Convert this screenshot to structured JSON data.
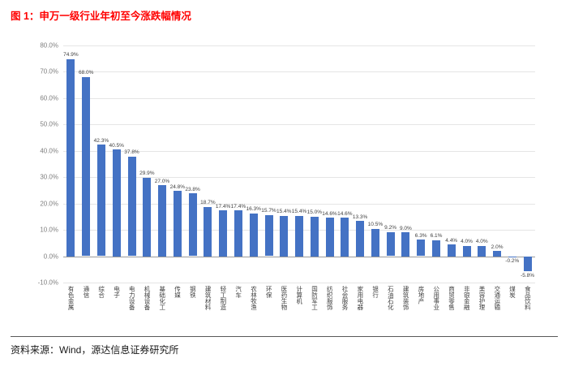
{
  "figure": {
    "title": "图 1：申万一级行业年初至今涨跌幅情况",
    "source": "资料来源：Wind，源达信息证券研究所"
  },
  "colors": {
    "title_red": "#ff0000",
    "bar_blue": "#4472c4",
    "gridline": "#e5e5e5",
    "zero_axis": "#9b9b9b"
  },
  "chart_data": {
    "type": "bar",
    "title": "申万一级行业年初至今涨跌幅情况",
    "categories": [
      "有色金属",
      "通信",
      "综合",
      "电子",
      "电力设备",
      "机械设备",
      "基础化工",
      "传媒",
      "钢铁",
      "建筑材料",
      "轻工制造",
      "汽车",
      "农林牧渔",
      "环保",
      "医药生物",
      "计算机",
      "国防军工",
      "纺织服饰",
      "社会服务",
      "家用电器",
      "银行",
      "石油石化",
      "建筑装饰",
      "房地产",
      "公用事业",
      "商贸零售",
      "非银金融",
      "美容护理",
      "交通运输",
      "煤炭",
      "食品饮料"
    ],
    "values": [
      74.9,
      68.0,
      42.3,
      40.5,
      37.8,
      29.9,
      27.0,
      24.8,
      23.8,
      18.7,
      17.4,
      17.4,
      16.3,
      15.7,
      15.4,
      15.4,
      15.0,
      14.6,
      14.6,
      13.3,
      10.5,
      9.2,
      9.0,
      6.3,
      6.1,
      4.4,
      4.0,
      4.0,
      2.0,
      -0.2,
      -5.8
    ],
    "value_labels": [
      "74.9%",
      "68.0%",
      "42.3%",
      "40.5%",
      "37.8%",
      "29.9%",
      "27.0%",
      "24.8%",
      "23.8%",
      "18.7%",
      "17.4%",
      "17.4%",
      "16.3%",
      "15.7%",
      "15.4%",
      "15.4%",
      "15.0%",
      "14.6%",
      "14.6%",
      "13.3%",
      "10.5%",
      "9.2%",
      "9.0%",
      "6.3%",
      "6.1%",
      "4.4%",
      "4.0%",
      "4.0%",
      "2.0%",
      "-0.2%",
      "-5.8%"
    ],
    "xlabel": "",
    "ylabel": "",
    "ylim": [
      -10,
      80
    ],
    "ytick_interval": 10,
    "ytick_labels": [
      "80.0%",
      "70.0%",
      "60.0%",
      "50.0%",
      "40.0%",
      "30.0%",
      "20.0%",
      "10.0%",
      "0.0%",
      "-10.0%"
    ],
    "grid": true,
    "legend": "none",
    "bar_color": "#4472c4"
  }
}
